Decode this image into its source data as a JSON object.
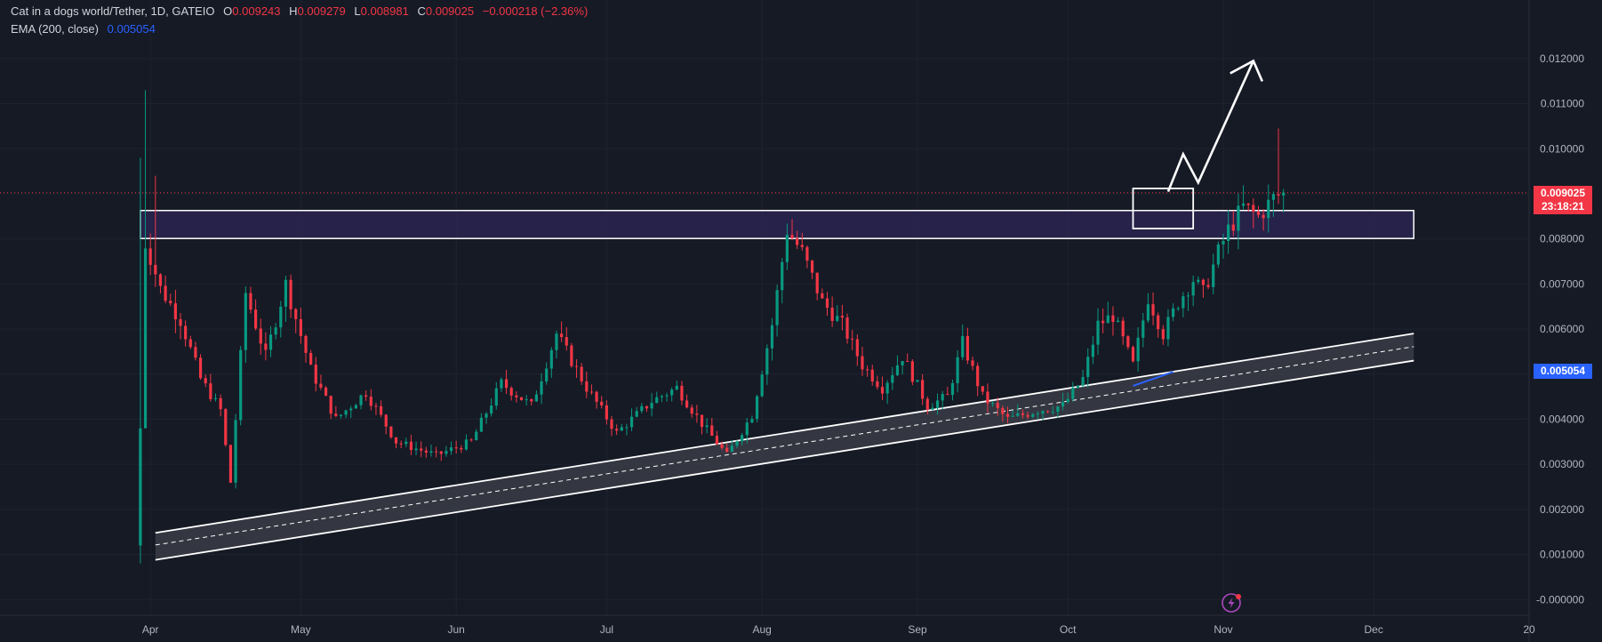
{
  "legend": {
    "symbol": "Cat in a dogs world/Tether, 1D, GATEIO",
    "o_label": "O",
    "o": "0.009243",
    "h_label": "H",
    "h": "0.009279",
    "l_label": "L",
    "l": "0.008981",
    "c_label": "C",
    "c": "0.009025",
    "change": "−0.000218 (−2.36%)",
    "ema_label": "EMA (200, close)",
    "ema_value": "0.005054"
  },
  "price_tag": {
    "value": "0.009025",
    "countdown": "23:18:21"
  },
  "ema_tag": {
    "value": "0.005054"
  },
  "colors": {
    "up": "#089981",
    "down": "#f23645",
    "ema": "#2962ff",
    "zone": "#2a2450"
  },
  "chart_data": {
    "type": "candlestick",
    "y_axis_labels": [
      "0.012000",
      "0.011000",
      "0.010000",
      "0.009000",
      "0.008000",
      "0.007000",
      "0.006000",
      "0.005000",
      "0.004000",
      "0.003000",
      "0.002000",
      "0.001000",
      "-0.000000"
    ],
    "y_ticks": [
      0.012,
      0.011,
      0.01,
      0.009,
      0.008,
      0.007,
      0.006,
      0.005,
      0.004,
      0.003,
      0.002,
      0.001,
      0.0
    ],
    "ylim": [
      -0.00035,
      0.0133
    ],
    "x_axis_labels": [
      "Apr",
      "May",
      "Jun",
      "Jul",
      "Aug",
      "Sep",
      "Oct",
      "Nov",
      "Dec",
      "20"
    ],
    "x_ticks": [
      "2024-04-01",
      "2024-05-01",
      "2024-06-01",
      "2024-07-01",
      "2024-08-01",
      "2024-09-01",
      "2024-10-01",
      "2024-11-01",
      "2024-12-01",
      "2025-01-01"
    ],
    "xlim": [
      "2024-03-02",
      "2025-01-01"
    ],
    "last_close": 0.009025,
    "resistance_zone": {
      "from": "2024-03-30",
      "to": "2024-12-09",
      "low": 0.00801,
      "high": 0.00863
    },
    "breakout_box": {
      "from": "2024-10-14",
      "to": "2024-10-26",
      "low": 0.00823,
      "high": 0.00912
    },
    "support_channel": {
      "upper": [
        [
          "2024-04-02",
          0.00148
        ],
        [
          "2024-12-09",
          0.0059
        ]
      ],
      "middle": [
        [
          "2024-04-02",
          0.00121
        ],
        [
          "2024-12-09",
          0.00561
        ]
      ],
      "lower": [
        [
          "2024-04-02",
          0.00088
        ],
        [
          "2024-12-09",
          0.0053
        ]
      ]
    },
    "projection_arrow": [
      [
        "2024-10-21",
        0.00905
      ],
      [
        "2024-10-24",
        0.00988
      ],
      [
        "2024-10-27",
        0.00925
      ],
      [
        "2024-11-07",
        0.01195
      ]
    ],
    "ema_segment": [
      [
        "2024-10-14",
        0.00474
      ],
      [
        "2024-10-22",
        0.00505
      ]
    ],
    "anchors": [
      [
        "2024-03-30",
        0.0038
      ],
      [
        "2024-03-31",
        0.0079
      ],
      [
        "2024-04-01",
        0.0076
      ],
      [
        "2024-04-03",
        0.0069
      ],
      [
        "2024-04-07",
        0.0062
      ],
      [
        "2024-04-11",
        0.0049
      ],
      [
        "2024-04-15",
        0.0042
      ],
      [
        "2024-04-17",
        0.0026
      ],
      [
        "2024-04-20",
        0.0068
      ],
      [
        "2024-04-24",
        0.0054
      ],
      [
        "2024-04-28",
        0.007
      ],
      [
        "2024-05-03",
        0.0051
      ],
      [
        "2024-05-08",
        0.004
      ],
      [
        "2024-05-14",
        0.0046
      ],
      [
        "2024-05-20",
        0.0035
      ],
      [
        "2024-05-28",
        0.0032
      ],
      [
        "2024-06-04",
        0.0035
      ],
      [
        "2024-06-10",
        0.0048
      ],
      [
        "2024-06-16",
        0.0043
      ],
      [
        "2024-06-21",
        0.0059
      ],
      [
        "2024-06-27",
        0.0047
      ],
      [
        "2024-07-03",
        0.0037
      ],
      [
        "2024-07-10",
        0.0044
      ],
      [
        "2024-07-15",
        0.0047
      ],
      [
        "2024-07-20",
        0.0039
      ],
      [
        "2024-07-25",
        0.0032
      ],
      [
        "2024-07-30",
        0.0041
      ],
      [
        "2024-08-03",
        0.0061
      ],
      [
        "2024-08-06",
        0.0082
      ],
      [
        "2024-08-09",
        0.0077
      ],
      [
        "2024-08-13",
        0.0066
      ],
      [
        "2024-08-17",
        0.0061
      ],
      [
        "2024-08-21",
        0.0052
      ],
      [
        "2024-08-25",
        0.0047
      ],
      [
        "2024-08-29",
        0.0054
      ],
      [
        "2024-09-03",
        0.0043
      ],
      [
        "2024-09-07",
        0.0045
      ],
      [
        "2024-09-10",
        0.0057
      ],
      [
        "2024-09-14",
        0.0045
      ],
      [
        "2024-09-19",
        0.004
      ],
      [
        "2024-09-25",
        0.0042
      ],
      [
        "2024-09-30",
        0.0043
      ],
      [
        "2024-10-04",
        0.0049
      ],
      [
        "2024-10-07",
        0.0061
      ],
      [
        "2024-10-10",
        0.0063
      ],
      [
        "2024-10-14",
        0.0052
      ],
      [
        "2024-10-17",
        0.0067
      ],
      [
        "2024-10-20",
        0.0059
      ],
      [
        "2024-10-23",
        0.0066
      ],
      [
        "2024-10-26",
        0.0071
      ],
      [
        "2024-10-28",
        0.0068
      ],
      [
        "2024-10-31",
        0.0077
      ],
      [
        "2024-11-02",
        0.0082
      ],
      [
        "2024-11-05",
        0.0087
      ],
      [
        "2024-11-08",
        0.0085
      ],
      [
        "2024-11-11",
        0.0089
      ],
      [
        "2024-11-13",
        0.00902
      ]
    ]
  }
}
